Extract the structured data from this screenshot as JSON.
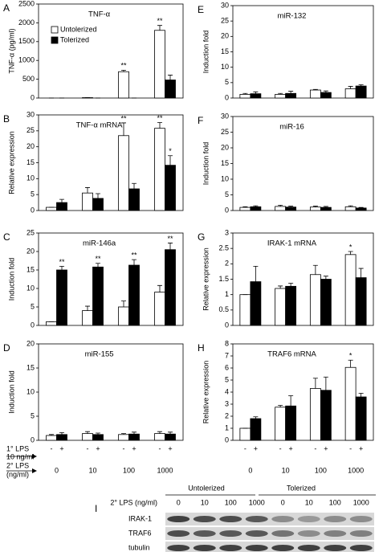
{
  "chart_data": [
    {
      "type": "bar",
      "letter": "A",
      "title": "TNF-α",
      "ylabel": "TNF-α (pg/ml)",
      "ylim": [
        0,
        2500
      ],
      "yticks": [
        0,
        500,
        1000,
        1500,
        2000,
        2500
      ],
      "categories": [
        null,
        null,
        null,
        null
      ],
      "legend": "upper left",
      "series": [
        {
          "name": "Untolerized",
          "color": "#ffffff",
          "values": [
            0,
            10,
            700,
            1800
          ],
          "errors": [
            0,
            0,
            40,
            130
          ],
          "significance": [
            null,
            null,
            "**",
            "**"
          ]
        },
        {
          "name": "Tolerized",
          "color": "#000000",
          "values": [
            0,
            0,
            0,
            480
          ],
          "errors": [
            0,
            0,
            0,
            130
          ],
          "significance": [
            null,
            null,
            null,
            null
          ]
        }
      ]
    },
    {
      "type": "bar",
      "letter": "B",
      "title": "TNF-α mRNA",
      "ylabel": "Relative expression",
      "ylim": [
        0,
        30
      ],
      "yticks": [
        0,
        5,
        10,
        15,
        20,
        25,
        30
      ],
      "categories": [
        null,
        null,
        null,
        null
      ],
      "series": [
        {
          "color": "#ffffff",
          "values": [
            1,
            5.5,
            23.5,
            25.8
          ],
          "errors": [
            0,
            1.7,
            4,
            1.8
          ],
          "significance": [
            null,
            null,
            "**",
            "**"
          ]
        },
        {
          "color": "#000000",
          "values": [
            2.5,
            3.8,
            6.8,
            14.2
          ],
          "errors": [
            1,
            1.5,
            1.7,
            3
          ],
          "significance": [
            null,
            null,
            null,
            "*"
          ]
        }
      ]
    },
    {
      "type": "bar",
      "letter": "C",
      "title": "miR-146a",
      "ylabel": "Induction fold",
      "ylim": [
        0,
        25
      ],
      "yticks": [
        0,
        5,
        10,
        15,
        20,
        25
      ],
      "categories": [
        null,
        null,
        null,
        null
      ],
      "series": [
        {
          "color": "#ffffff",
          "values": [
            1,
            4,
            5,
            9
          ],
          "errors": [
            0,
            1.2,
            1.6,
            1.8
          ],
          "significance": [
            null,
            null,
            null,
            null
          ]
        },
        {
          "color": "#000000",
          "values": [
            15,
            15.8,
            16.3,
            20.5
          ],
          "errors": [
            1,
            1,
            1.5,
            1.8
          ],
          "significance": [
            "**",
            "**",
            "**",
            "**"
          ]
        }
      ]
    },
    {
      "type": "bar",
      "letter": "D",
      "title": "miR-155",
      "ylabel": "Induction fold",
      "ylim": [
        0,
        20
      ],
      "yticks": [
        0,
        5,
        10,
        15,
        20
      ],
      "categories": [
        "0",
        "10",
        "100",
        "1000"
      ],
      "signs": [
        "-",
        "+",
        "-",
        "+",
        "-",
        "+",
        "-",
        "+"
      ],
      "primary_label": "1° LPS",
      "primary_sub": "10 ng/ml",
      "secondary_label": "2° LPS",
      "secondary_sub": "(ng/ml)",
      "series": [
        {
          "color": "#ffffff",
          "values": [
            1,
            1.4,
            1.2,
            1.4
          ],
          "errors": [
            0.2,
            0.4,
            0.2,
            0.4
          ],
          "significance": [
            null,
            null,
            null,
            null
          ]
        },
        {
          "color": "#000000",
          "values": [
            1.2,
            1.2,
            1.3,
            1.3
          ],
          "errors": [
            0.4,
            0.3,
            0.4,
            0.4
          ],
          "significance": [
            null,
            null,
            null,
            null
          ]
        }
      ]
    },
    {
      "type": "bar",
      "letter": "E",
      "title": "miR-132",
      "ylabel": "Induction fold",
      "ylim": [
        0,
        30
      ],
      "yticks": [
        0,
        5,
        10,
        15,
        20,
        25,
        30
      ],
      "categories": [
        null,
        null,
        null,
        null
      ],
      "series": [
        {
          "color": "#ffffff",
          "values": [
            1.2,
            1.2,
            2.6,
            3
          ],
          "errors": [
            0.3,
            0.3,
            0.2,
            0.8
          ],
          "significance": [
            null,
            null,
            null,
            null
          ]
        },
        {
          "color": "#000000",
          "values": [
            1.4,
            1.5,
            1.8,
            3.9
          ],
          "errors": [
            0.6,
            0.7,
            0.5,
            0.4
          ],
          "significance": [
            null,
            null,
            null,
            null
          ]
        }
      ]
    },
    {
      "type": "bar",
      "letter": "F",
      "title": "miR-16",
      "ylabel": "Induction fold",
      "ylim": [
        0,
        30
      ],
      "yticks": [
        0,
        5,
        10,
        15,
        20,
        25,
        30
      ],
      "categories": [
        null,
        null,
        null,
        null
      ],
      "series": [
        {
          "color": "#ffffff",
          "values": [
            1,
            1.3,
            1.1,
            1.2
          ],
          "errors": [
            0.2,
            0.4,
            0.3,
            0.3
          ],
          "significance": [
            null,
            null,
            null,
            null
          ]
        },
        {
          "color": "#000000",
          "values": [
            1.2,
            1.1,
            1,
            0.8
          ],
          "errors": [
            0.3,
            0.3,
            0.3,
            0.2
          ],
          "significance": [
            null,
            null,
            null,
            null
          ]
        }
      ]
    },
    {
      "type": "bar",
      "letter": "G",
      "title": "IRAK-1 mRNA",
      "ylabel": "Relative expression",
      "ylim": [
        0,
        3
      ],
      "yticks": [
        0,
        0.5,
        1,
        1.5,
        2,
        2.5,
        3
      ],
      "categories": [
        null,
        null,
        null,
        null
      ],
      "series": [
        {
          "color": "#ffffff",
          "values": [
            1,
            1.2,
            1.65,
            2.3
          ],
          "errors": [
            0,
            0.08,
            0.3,
            0.1
          ],
          "significance": [
            null,
            null,
            null,
            "*"
          ]
        },
        {
          "color": "#000000",
          "values": [
            1.42,
            1.27,
            1.5,
            1.55
          ],
          "errors": [
            0.5,
            0.1,
            0.1,
            0.3
          ],
          "significance": [
            null,
            null,
            null,
            null
          ]
        }
      ]
    },
    {
      "type": "bar",
      "letter": "H",
      "title": "TRAF6 mRNA",
      "ylabel": "Relative expression",
      "ylim": [
        0,
        8
      ],
      "yticks": [
        0,
        1,
        2,
        3,
        4,
        5,
        6,
        7,
        8
      ],
      "categories": [
        "0",
        "10",
        "100",
        "1000"
      ],
      "signs": [
        "-",
        "+",
        "-",
        "+",
        "-",
        "+",
        "-",
        "+"
      ],
      "series": [
        {
          "color": "#ffffff",
          "values": [
            1,
            2.75,
            4.3,
            6.05
          ],
          "errors": [
            0,
            0.15,
            0.85,
            0.6
          ],
          "significance": [
            null,
            null,
            null,
            "*"
          ]
        },
        {
          "color": "#000000",
          "values": [
            1.8,
            2.85,
            4.15,
            3.6
          ],
          "errors": [
            0.15,
            0.85,
            1.1,
            0.3
          ],
          "significance": [
            null,
            null,
            null,
            null
          ]
        }
      ]
    }
  ],
  "blot": {
    "letter": "I",
    "groups": [
      "Untolerized",
      "Tolerized"
    ],
    "dose_label": "2° LPS (ng/ml)",
    "doses": [
      "0",
      "10",
      "100",
      "1000",
      "0",
      "10",
      "100",
      "1000"
    ],
    "rows": [
      "IRAK-1",
      "TRAF6",
      "tubulin"
    ]
  }
}
